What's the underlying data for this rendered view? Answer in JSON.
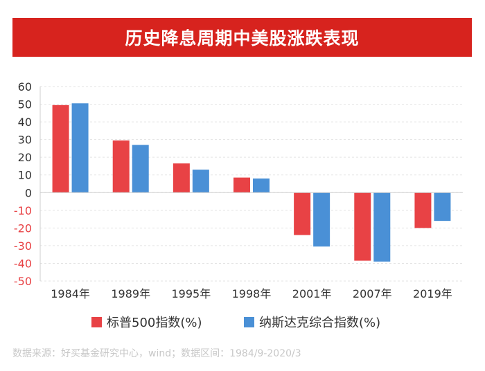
{
  "header": {
    "title": "历史降息周期中美股涨跌表现"
  },
  "chart_data": {
    "type": "bar",
    "title": "历史降息周期中美股涨跌表现",
    "categories": [
      "1984年",
      "1989年",
      "1995年",
      "1998年",
      "2001年",
      "2007年",
      "2019年"
    ],
    "series": [
      {
        "name": "标普500指数(%)",
        "color": "#e84245",
        "values": [
          49.5,
          29.5,
          16.5,
          8.5,
          -24,
          -38.5,
          -20
        ]
      },
      {
        "name": "纳斯达克综合指数(%)",
        "color": "#4a90d6",
        "values": [
          50.5,
          27,
          13,
          8,
          -30.5,
          -39,
          -16
        ]
      }
    ],
    "ylim": [
      -50,
      60
    ],
    "yticks": [
      60,
      50,
      40,
      30,
      20,
      10,
      0,
      -10,
      -20,
      -30,
      -40,
      -50
    ],
    "grid": true,
    "legend": "bottom"
  },
  "footer": {
    "source": "数据来源：好买基金研究中心，wind；数据区间：1984/9-2020/3"
  }
}
